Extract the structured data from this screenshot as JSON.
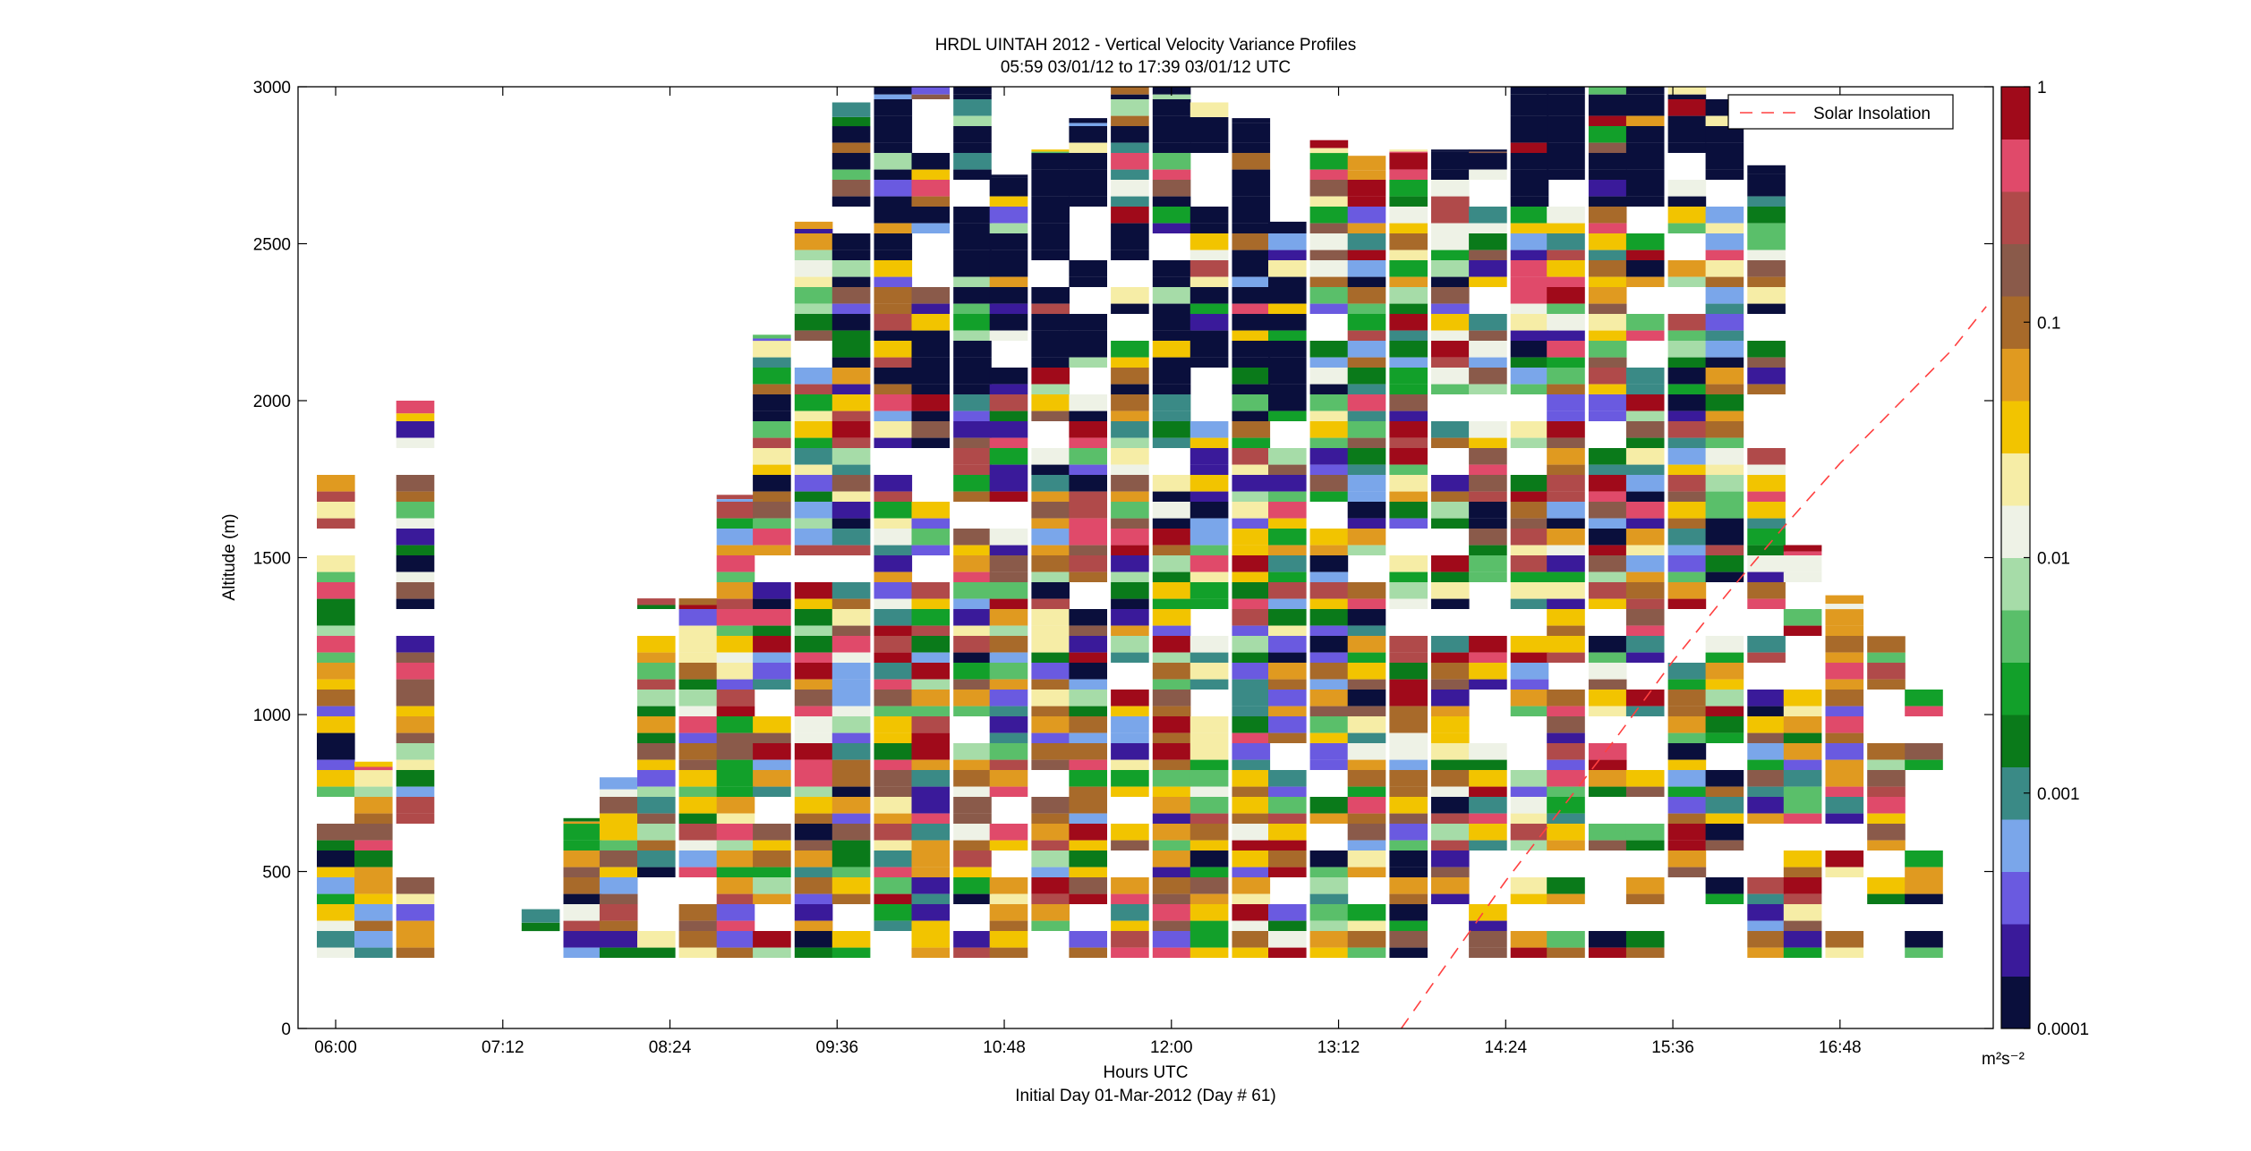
{
  "chart_data": {
    "type": "heatmap",
    "title": "HRDL UINTAH 2012 - Vertical Velocity Variance Profiles",
    "subtitle": "05:59 03/01/12 to 17:39 03/01/12  UTC",
    "xlabel": "Hours UTC",
    "xlabel2": "Initial Day 01-Mar-2012 (Day # 61)",
    "ylabel": "Altitude (m)",
    "colorbar_label": "m²s⁻²",
    "x_ticks": [
      "06:00",
      "07:12",
      "08:24",
      "09:36",
      "10:48",
      "12:00",
      "13:12",
      "14:24",
      "15:36",
      "16:48"
    ],
    "x_tick_hours": [
      6.0,
      7.2,
      8.4,
      9.6,
      10.8,
      12.0,
      13.2,
      14.4,
      15.6,
      16.8
    ],
    "xlim_hours": [
      5.73,
      17.9
    ],
    "y_ticks": [
      0,
      500,
      1000,
      1500,
      2000,
      2500,
      3000
    ],
    "ylim": [
      0,
      3000
    ],
    "color_scale": "log",
    "clim": [
      0.0001,
      1
    ],
    "colorbar_ticks": [
      "1",
      "0.1",
      "0.01",
      "0.001",
      "0.0001"
    ],
    "colorbar_tick_values": [
      1,
      0.1,
      0.01,
      0.001,
      0.0001
    ],
    "colormap": [
      "#0a0f3c",
      "#3a1a9a",
      "#6a5ae0",
      "#7aa6ea",
      "#3a8a86",
      "#0a7a1a",
      "#12a02a",
      "#5abf6a",
      "#a6dca8",
      "#eef2e6",
      "#f6eda6",
      "#f2c400",
      "#e09a20",
      "#a86a2a",
      "#8a5a4a",
      "#b04a4a",
      "#e04a6a",
      "#a00a1a"
    ],
    "legend": {
      "entries": [
        "Solar Insolation"
      ],
      "placement": "top-right"
    },
    "series": [
      {
        "name": "Solar Insolation",
        "style": "dashed",
        "color": "#ff4040",
        "x_hours": [
          13.65,
          14.0,
          14.4,
          14.8,
          15.2,
          15.6,
          16.0,
          16.4,
          16.8,
          17.2,
          17.6,
          17.85
        ],
        "altitude_m": [
          0,
          220,
          470,
          700,
          930,
          1170,
          1390,
          1600,
          1800,
          1980,
          2160,
          2300
        ]
      }
    ],
    "profile_times_hours": [
      6.0,
      6.27,
      6.57,
      7.47,
      7.77,
      8.03,
      8.3,
      8.6,
      8.87,
      9.13,
      9.43,
      9.7,
      10.0,
      10.27,
      10.57,
      10.83,
      11.13,
      11.4,
      11.7,
      12.0,
      12.27,
      12.57,
      12.83,
      13.13,
      13.4,
      13.7,
      14.0,
      14.27,
      14.57,
      14.83,
      15.13,
      15.4,
      15.7,
      15.97,
      16.27,
      16.53,
      16.83,
      17.13,
      17.4
    ],
    "profile_top_altitude_m": [
      1820,
      850,
      2000,
      380,
      670,
      800,
      1370,
      1370,
      1700,
      2210,
      2570,
      2950,
      3000,
      3000,
      3000,
      2720,
      2800,
      2900,
      3000,
      3000,
      2950,
      2900,
      2570,
      2830,
      2780,
      2800,
      2800,
      2800,
      3000,
      3000,
      3000,
      3000,
      3000,
      3000,
      2750,
      1540,
      1380,
      1250,
      1100
    ],
    "profile_bottom_altitude_m": 225
  }
}
